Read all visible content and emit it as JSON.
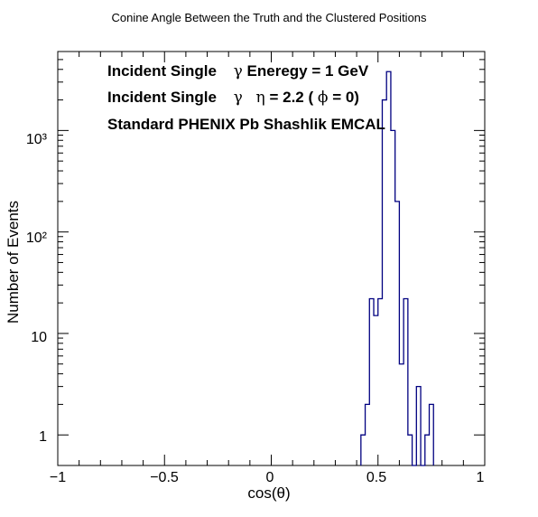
{
  "chart_data": {
    "type": "bar",
    "style": "step-histogram",
    "title": "Conine Angle Between the Truth and the Clustered Positions",
    "xlabel": "cos(θ)",
    "ylabel": "Number of Events",
    "xlim": [
      -1,
      1
    ],
    "ylim": [
      0.5,
      6000
    ],
    "yscale": "log",
    "grid": false,
    "legend": "none",
    "x_ticks": [
      "−1",
      "−0.5",
      "0",
      "0.5",
      "1"
    ],
    "y_ticks": [
      "1",
      "10",
      "10³",
      "10²"
    ],
    "line_color": "#000080",
    "bin_width": 0.02,
    "bins": [
      {
        "low": 0.42,
        "value": 1
      },
      {
        "low": 0.44,
        "value": 2
      },
      {
        "low": 0.46,
        "value": 22
      },
      {
        "low": 0.48,
        "value": 15
      },
      {
        "low": 0.5,
        "value": 22
      },
      {
        "low": 0.52,
        "value": 2000
      },
      {
        "low": 0.54,
        "value": 3800
      },
      {
        "low": 0.56,
        "value": 1000
      },
      {
        "low": 0.58,
        "value": 200
      },
      {
        "low": 0.6,
        "value": 5
      },
      {
        "low": 0.62,
        "value": 22
      },
      {
        "low": 0.64,
        "value": 1
      },
      {
        "low": 0.66,
        "value": 0
      },
      {
        "low": 0.68,
        "value": 3
      },
      {
        "low": 0.7,
        "value": 0
      },
      {
        "low": 0.72,
        "value": 1
      },
      {
        "low": 0.74,
        "value": 2
      }
    ],
    "annotations": {
      "line1_text": "Incident Single",
      "line1_symbol": "γ",
      "line1_rest": " Eneregy = 1 GeV",
      "line2_text": "Incident Single",
      "line2_symbol": "γ",
      "line2_eta": "η",
      "line2_rest_a": " = 2.2 (",
      "line2_phi": "ϕ",
      "line2_rest_b": " = 0)",
      "line3_text": "Standard PHENIX Pb Shashlik EMCAL"
    }
  }
}
